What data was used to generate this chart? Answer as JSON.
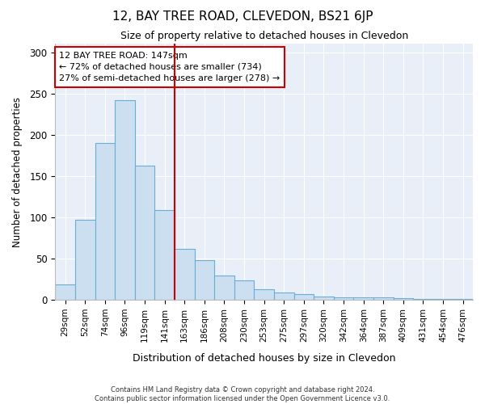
{
  "title": "12, BAY TREE ROAD, CLEVEDON, BS21 6JP",
  "subtitle": "Size of property relative to detached houses in Clevedon",
  "xlabel": "Distribution of detached houses by size in Clevedon",
  "ylabel": "Number of detached properties",
  "bar_color": "#ccdff0",
  "bar_edge_color": "#6aaed6",
  "background_color": "#e8eff8",
  "categories": [
    "29sqm",
    "52sqm",
    "74sqm",
    "96sqm",
    "119sqm",
    "141sqm",
    "163sqm",
    "186sqm",
    "208sqm",
    "230sqm",
    "253sqm",
    "275sqm",
    "297sqm",
    "320sqm",
    "342sqm",
    "364sqm",
    "387sqm",
    "409sqm",
    "431sqm",
    "454sqm",
    "476sqm"
  ],
  "values": [
    19,
    97,
    190,
    242,
    163,
    109,
    62,
    48,
    30,
    24,
    13,
    9,
    7,
    4,
    3,
    3,
    3,
    2,
    1,
    1,
    1
  ],
  "vline_position": 5.5,
  "vline_color": "#cc0000",
  "annotation_text": "12 BAY TREE ROAD: 147sqm\n← 72% of detached houses are smaller (734)\n27% of semi-detached houses are larger (278) →",
  "annotation_box_facecolor": "#ffffff",
  "annotation_box_edgecolor": "#cc0000",
  "ylim": [
    0,
    310
  ],
  "yticks": [
    0,
    50,
    100,
    150,
    200,
    250,
    300
  ],
  "footer_line1": "Contains HM Land Registry data © Crown copyright and database right 2024.",
  "footer_line2": "Contains public sector information licensed under the Open Government Licence v3.0.",
  "grid_color": "#ffffff"
}
